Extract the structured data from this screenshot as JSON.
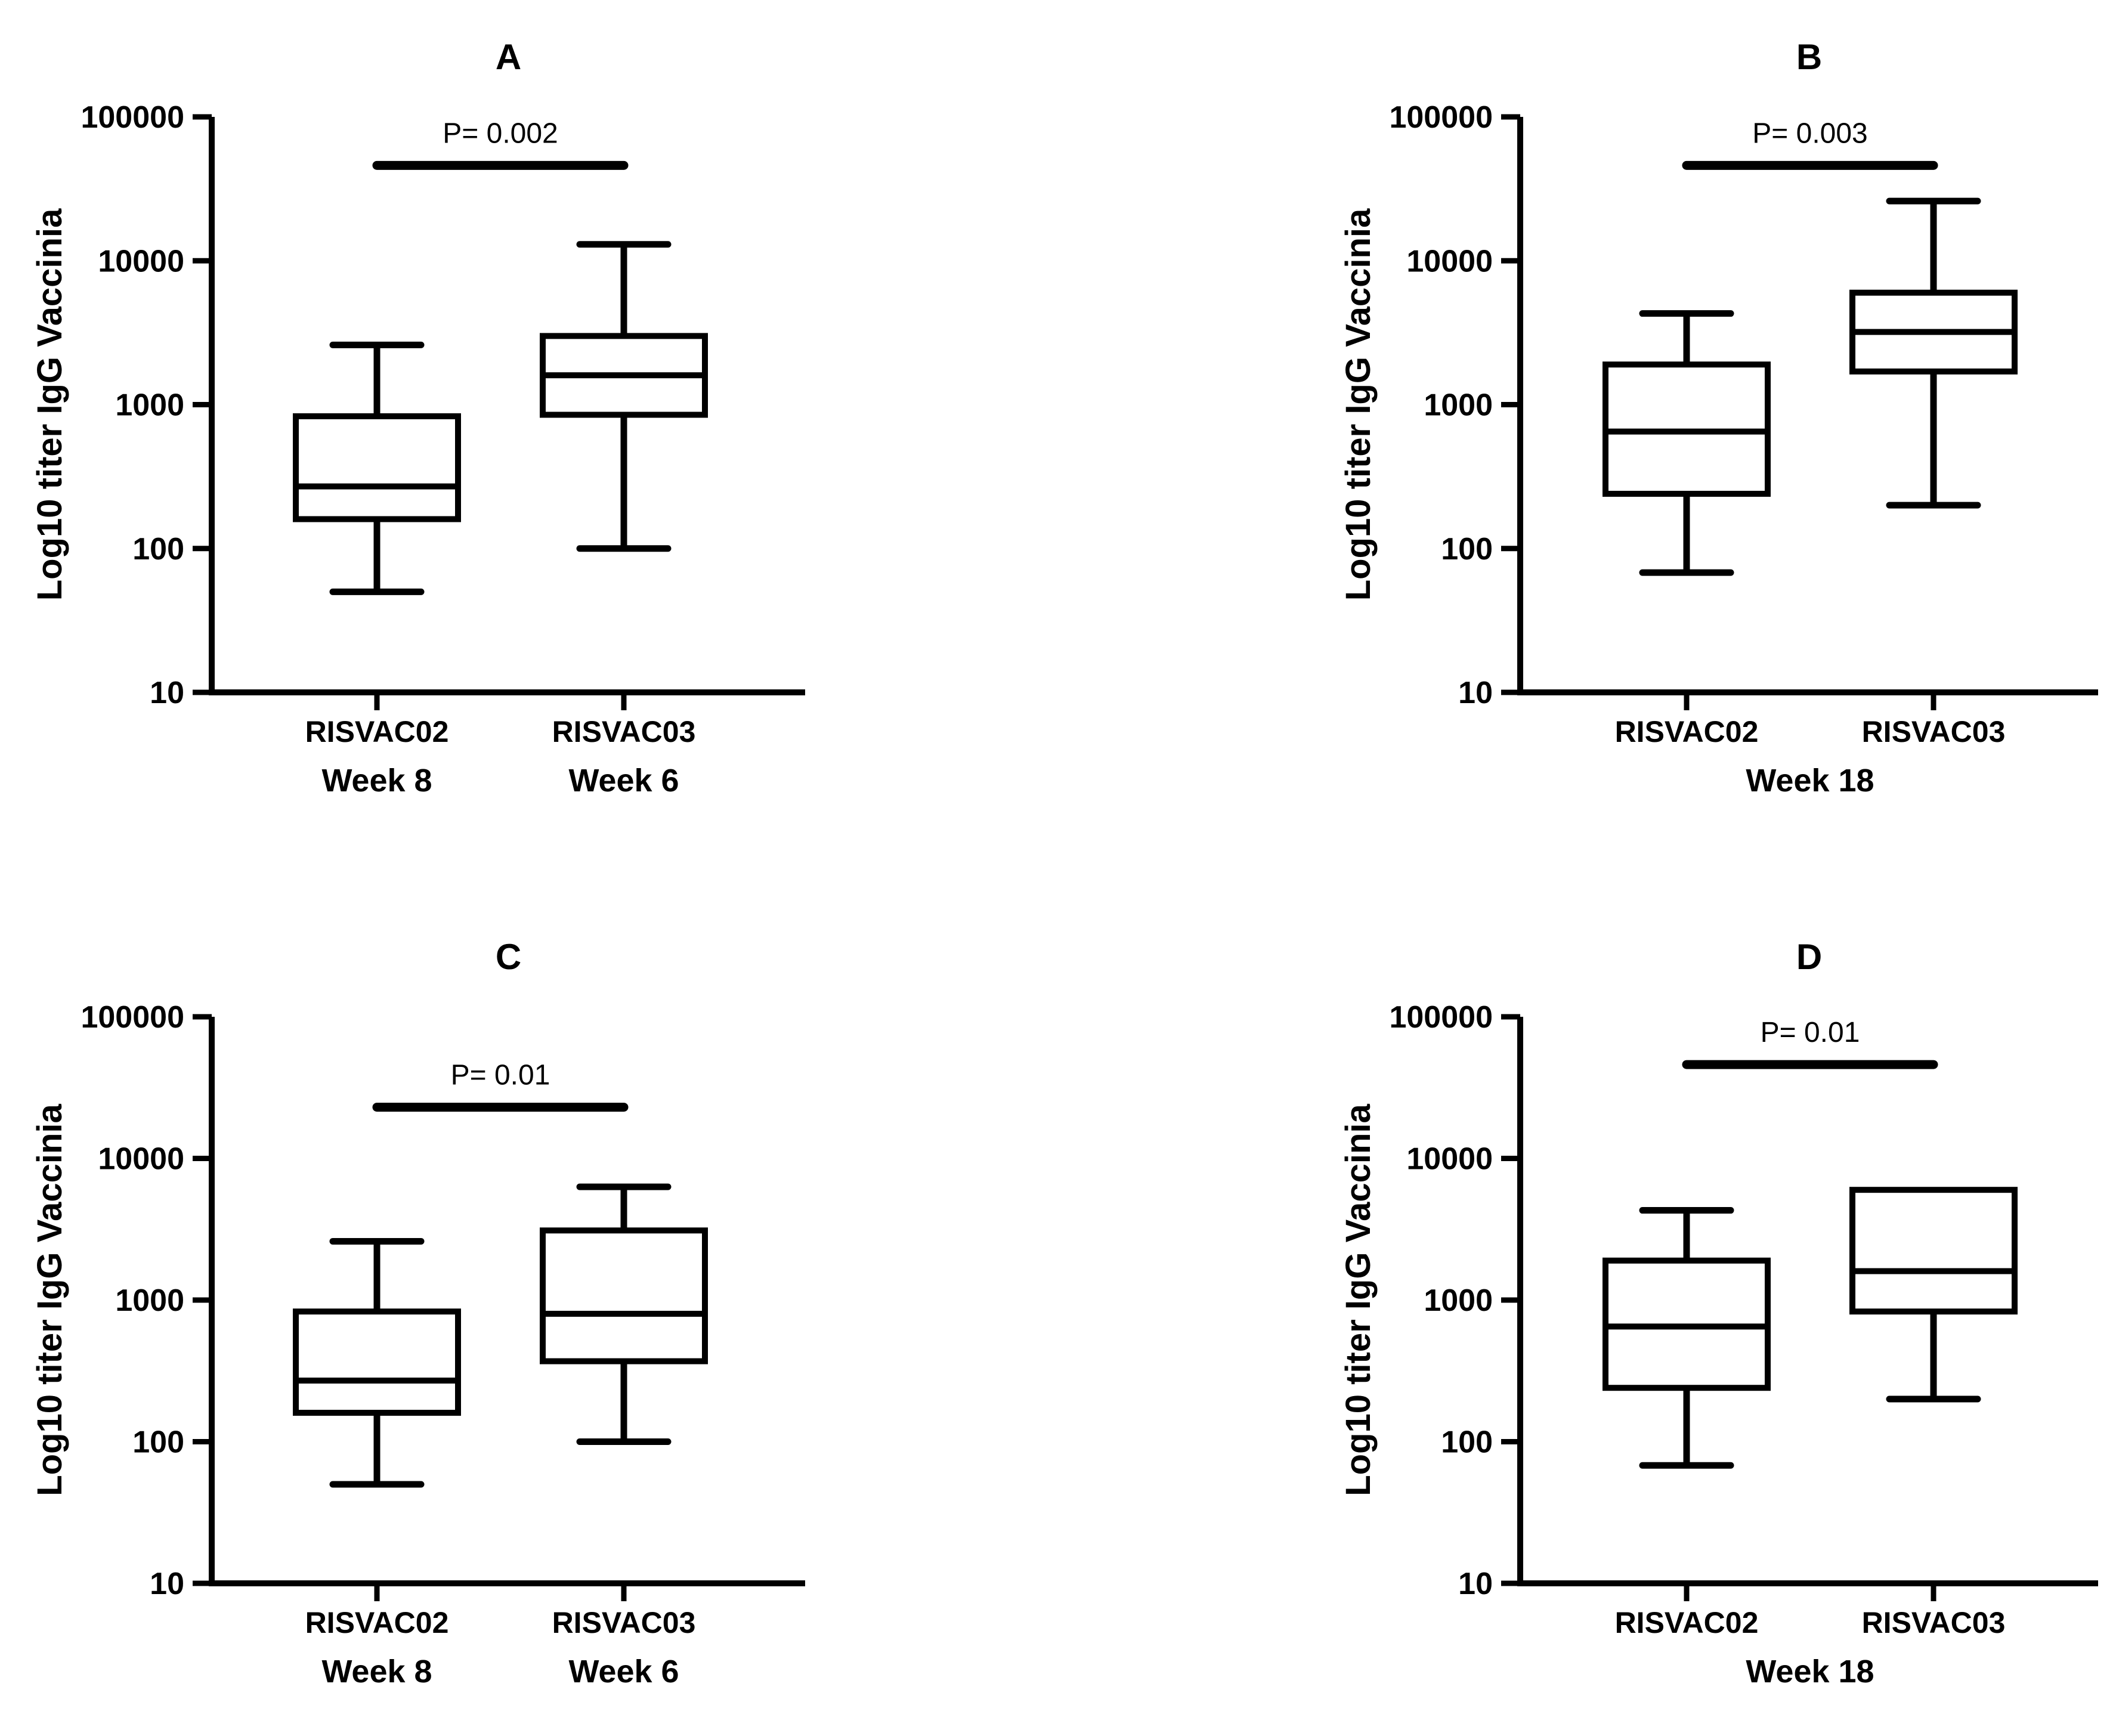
{
  "figure": {
    "background_color": "#ffffff",
    "ink_color": "#000000",
    "description": "Four-panel box-and-whisker figure comparing Log10 IgG vaccinia titers between RISVAC02 and RISVAC03 vaccine groups"
  },
  "chart_data": [
    {
      "panel": "A",
      "type": "box",
      "title": "A",
      "ylabel": "Log10 titer IgG Vaccinia",
      "yscale": "log10",
      "ylim": [
        10,
        100000
      ],
      "yticks": [
        10,
        100,
        1000,
        10000,
        100000
      ],
      "significance": {
        "label": "P= 0.002",
        "bar_value": 46000
      },
      "categories": [
        "RISVAC02",
        "RISVAC03"
      ],
      "category_sublabels": [
        "Week 8",
        "Week 6"
      ],
      "shared_sublabel": "",
      "series": [
        {
          "name": "RISVAC02",
          "timepoint": "Week 8",
          "whisker_low": 50,
          "q1": 160,
          "median": 270,
          "q3": 830,
          "whisker_high": 2600
        },
        {
          "name": "RISVAC03",
          "timepoint": "Week 6",
          "whisker_low": 100,
          "q1": 850,
          "median": 1600,
          "q3": 3000,
          "whisker_high": 13000
        }
      ]
    },
    {
      "panel": "B",
      "type": "box",
      "title": "B",
      "ylabel": "Log10 titer IgG Vaccinia",
      "yscale": "log10",
      "ylim": [
        10,
        100000
      ],
      "yticks": [
        10,
        100,
        1000,
        10000,
        100000
      ],
      "significance": {
        "label": "P= 0.003",
        "bar_value": 46000
      },
      "categories": [
        "RISVAC02",
        "RISVAC03"
      ],
      "category_sublabels": [],
      "shared_sublabel": "Week 18",
      "series": [
        {
          "name": "RISVAC02",
          "timepoint": "Week 18",
          "whisker_low": 68,
          "q1": 240,
          "median": 650,
          "q3": 1900,
          "whisker_high": 4300
        },
        {
          "name": "RISVAC03",
          "timepoint": "Week 18",
          "whisker_low": 200,
          "q1": 1700,
          "median": 3200,
          "q3": 6000,
          "whisker_high": 26000
        }
      ]
    },
    {
      "panel": "C",
      "type": "box",
      "title": "C",
      "ylabel": "Log10 titer IgG Vaccinia",
      "yscale": "log10",
      "ylim": [
        10,
        100000
      ],
      "yticks": [
        10,
        100,
        1000,
        10000,
        100000
      ],
      "significance": {
        "label": "P= 0.01",
        "bar_value": 23000
      },
      "categories": [
        "RISVAC02",
        "RISVAC03"
      ],
      "category_sublabels": [
        "Week 8",
        "Week 6"
      ],
      "shared_sublabel": "",
      "series": [
        {
          "name": "RISVAC02",
          "timepoint": "Week 8",
          "whisker_low": 50,
          "q1": 160,
          "median": 270,
          "q3": 830,
          "whisker_high": 2600
        },
        {
          "name": "RISVAC03",
          "timepoint": "Week 6",
          "whisker_low": 100,
          "q1": 370,
          "median": 800,
          "q3": 3100,
          "whisker_high": 6300
        }
      ]
    },
    {
      "panel": "D",
      "type": "box",
      "title": "D",
      "ylabel": "Log10 titer IgG Vaccinia",
      "yscale": "log10",
      "ylim": [
        10,
        100000
      ],
      "yticks": [
        10,
        100,
        1000,
        10000,
        100000
      ],
      "significance": {
        "label": "P= 0.01",
        "bar_value": 46000
      },
      "categories": [
        "RISVAC02",
        "RISVAC03"
      ],
      "category_sublabels": [],
      "shared_sublabel": "Week 18",
      "series": [
        {
          "name": "RISVAC02",
          "timepoint": "Week 18",
          "whisker_low": 68,
          "q1": 240,
          "median": 650,
          "q3": 1900,
          "whisker_high": 4300
        },
        {
          "name": "RISVAC03",
          "timepoint": "Week 18",
          "whisker_low": 200,
          "q1": 830,
          "median": 1600,
          "q3": 6000,
          "whisker_high": 6000
        }
      ]
    }
  ]
}
